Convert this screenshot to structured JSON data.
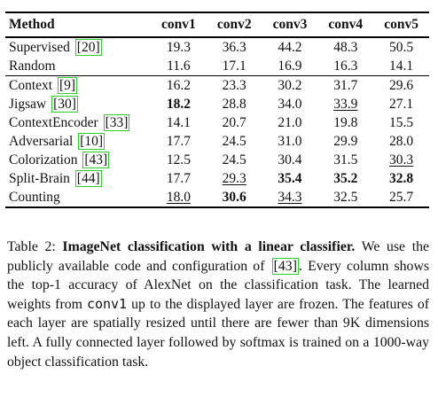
{
  "table": {
    "headers": [
      "Method",
      "conv1",
      "conv2",
      "conv3",
      "conv4",
      "conv5"
    ],
    "groups": [
      [
        {
          "method": "Supervised",
          "ref": "20",
          "values": [
            "19.3",
            "36.3",
            "44.2",
            "48.3",
            "50.5"
          ],
          "bold": [],
          "underline": []
        },
        {
          "method": "Random",
          "ref": "",
          "values": [
            "11.6",
            "17.1",
            "16.9",
            "16.3",
            "14.1"
          ],
          "bold": [],
          "underline": []
        }
      ],
      [
        {
          "method": "Context",
          "ref": "9",
          "values": [
            "16.2",
            "23.3",
            "30.2",
            "31.7",
            "29.6"
          ],
          "bold": [],
          "underline": []
        },
        {
          "method": "Jigsaw",
          "ref": "30",
          "values": [
            "18.2",
            "28.8",
            "34.0",
            "33.9",
            "27.1"
          ],
          "bold": [
            0
          ],
          "underline": [
            3
          ]
        },
        {
          "method": "ContextEncoder",
          "ref": "33",
          "values": [
            "14.1",
            "20.7",
            "21.0",
            "19.8",
            "15.5"
          ],
          "bold": [],
          "underline": []
        },
        {
          "method": "Adversarial",
          "ref": "10",
          "values": [
            "17.7",
            "24.5",
            "31.0",
            "29.9",
            "28.0"
          ],
          "bold": [],
          "underline": []
        },
        {
          "method": "Colorization",
          "ref": "43",
          "values": [
            "12.5",
            "24.5",
            "30.4",
            "31.5",
            "30.3"
          ],
          "bold": [],
          "underline": [
            4
          ]
        },
        {
          "method": "Split-Brain",
          "ref": "44",
          "values": [
            "17.7",
            "29.3",
            "35.4",
            "35.2",
            "32.8"
          ],
          "bold": [
            2,
            3,
            4
          ],
          "underline": [
            1
          ]
        },
        {
          "method": "Counting",
          "ref": "",
          "values": [
            "18.0",
            "30.6",
            "34.3",
            "32.5",
            "25.7"
          ],
          "bold": [
            1
          ],
          "underline": [
            0,
            2
          ]
        }
      ]
    ]
  },
  "caption": {
    "label": "Table 2:",
    "lead": "ImageNet classification with a linear classifier.",
    "part1": "We use the publicly available code and configuration of",
    "ref": "43",
    "part2": ". Every column shows the top-1 accuracy of AlexNet on the classification task. The learned weights from",
    "code": "conv1",
    "part3": "up to the displayed layer are frozen. The features of each layer are spatially resized until there are fewer than 9K dimensions left. A fully connected layer followed by softmax is trained on a 1000-way object classification task."
  }
}
